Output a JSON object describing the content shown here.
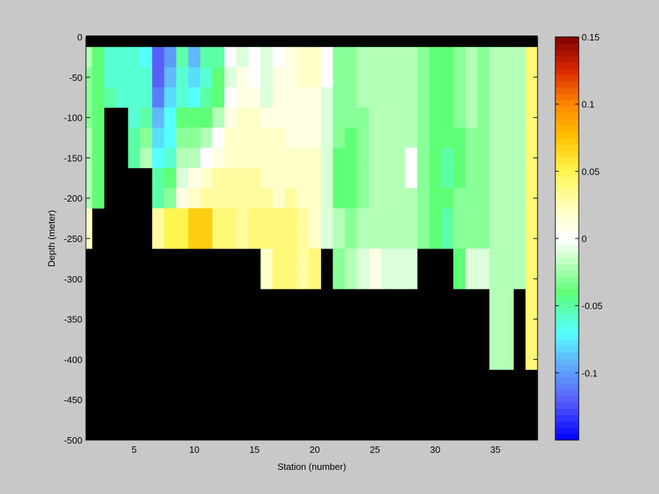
{
  "chart_data": {
    "type": "heatmap",
    "title": "",
    "xlabel": "Station (number)",
    "ylabel": "Depth (meter)",
    "xlim": [
      1,
      38.5
    ],
    "ylim": [
      -500,
      0
    ],
    "x_ticks": [
      5,
      10,
      15,
      20,
      25,
      30,
      35
    ],
    "y_ticks": [
      0,
      -50,
      -100,
      -150,
      -200,
      -250,
      -300,
      -350,
      -400,
      -450,
      -500
    ],
    "colorbar": {
      "min": -0.15,
      "max": 0.15,
      "ticks": [
        0.15,
        0.1,
        0.05,
        0,
        -0.05,
        -0.1
      ],
      "tick_labels": [
        "0.15",
        "0.1",
        "0.05",
        "0",
        "-0.05",
        "-0.1"
      ],
      "levels": 64,
      "colormap": "blue-cyan-green-white-yellow-orange-red"
    },
    "missing_color": "#000000",
    "x": [
      1,
      2,
      3,
      4,
      5,
      6,
      7,
      8,
      9,
      10,
      11,
      12,
      13,
      14,
      15,
      16,
      17,
      18,
      19,
      20,
      21,
      22,
      23,
      24,
      25,
      26,
      27,
      28,
      29,
      30,
      31,
      32,
      33,
      34,
      35,
      36,
      37,
      38
    ],
    "depths": [
      -25,
      -50,
      -75,
      -100,
      -125,
      -150,
      -175,
      -200,
      -225,
      -250,
      -275,
      -300,
      -325,
      -350,
      -375,
      -400
    ],
    "values": [
      [
        -0.02,
        -0.03,
        -0.03,
        -0.03,
        -0.02,
        -0.02,
        -0.02,
        -0.02,
        0.02,
        0.02,
        null,
        null,
        null,
        null,
        null,
        null
      ],
      [
        -0.04,
        -0.04,
        -0.04,
        -0.04,
        -0.04,
        -0.04,
        -0.04,
        -0.04,
        null,
        null,
        null,
        null,
        null,
        null,
        null,
        null
      ],
      [
        -0.06,
        -0.06,
        -0.05,
        null,
        null,
        null,
        null,
        null,
        null,
        null,
        null,
        null,
        null,
        null,
        null,
        null
      ],
      [
        -0.06,
        -0.06,
        -0.06,
        null,
        null,
        null,
        null,
        null,
        null,
        null,
        null,
        null,
        null,
        null,
        null,
        null
      ],
      [
        -0.06,
        -0.06,
        -0.06,
        -0.06,
        -0.05,
        -0.05,
        null,
        null,
        null,
        null,
        null,
        null,
        null,
        null,
        null,
        null
      ],
      [
        -0.07,
        -0.06,
        -0.06,
        -0.05,
        -0.03,
        -0.02,
        null,
        null,
        null,
        null,
        null,
        null,
        null,
        null,
        null,
        null
      ],
      [
        -0.12,
        -0.12,
        -0.11,
        -0.09,
        -0.08,
        -0.07,
        -0.05,
        -0.05,
        0.03,
        0.03,
        null,
        null,
        null,
        null,
        null,
        null
      ],
      [
        -0.1,
        -0.09,
        -0.08,
        -0.07,
        -0.07,
        -0.06,
        -0.04,
        -0.03,
        0.05,
        0.05,
        null,
        null,
        null,
        null,
        null,
        null
      ],
      [
        -0.05,
        -0.06,
        -0.06,
        -0.04,
        -0.03,
        -0.02,
        -0.01,
        0.01,
        0.05,
        0.05,
        null,
        null,
        null,
        null,
        null,
        null
      ],
      [
        -0.09,
        -0.08,
        -0.07,
        -0.04,
        -0.03,
        -0.02,
        0.01,
        0.02,
        0.07,
        0.07,
        null,
        null,
        null,
        null,
        null,
        null
      ],
      [
        -0.05,
        -0.06,
        -0.05,
        -0.04,
        -0.02,
        0.0,
        0.02,
        0.03,
        0.07,
        0.07,
        null,
        null,
        null,
        null,
        null,
        null
      ],
      [
        -0.05,
        -0.04,
        -0.04,
        -0.02,
        0.0,
        0.01,
        0.03,
        0.03,
        0.04,
        0.04,
        null,
        null,
        null,
        null,
        null,
        null
      ],
      [
        0.0,
        -0.01,
        0.0,
        0.01,
        0.02,
        0.02,
        0.03,
        0.03,
        0.04,
        0.04,
        null,
        null,
        null,
        null,
        null,
        null
      ],
      [
        -0.01,
        0.01,
        0.01,
        0.02,
        0.02,
        0.02,
        0.03,
        0.03,
        0.03,
        0.03,
        null,
        null,
        null,
        null,
        null,
        null
      ],
      [
        0.0,
        0.0,
        0.01,
        0.02,
        0.02,
        0.02,
        0.03,
        0.03,
        0.04,
        0.04,
        null,
        null,
        null,
        null,
        null,
        null
      ],
      [
        -0.01,
        -0.01,
        -0.01,
        0.01,
        0.02,
        0.02,
        0.02,
        0.03,
        0.04,
        0.04,
        0.02,
        0.02,
        null,
        null,
        null,
        null
      ],
      [
        0.0,
        0.01,
        0.01,
        0.01,
        0.02,
        0.02,
        0.02,
        0.02,
        0.04,
        0.04,
        0.04,
        0.04,
        null,
        null,
        null,
        null
      ],
      [
        0.01,
        0.01,
        0.01,
        0.01,
        0.01,
        0.02,
        0.02,
        0.03,
        0.04,
        0.04,
        0.04,
        0.04,
        null,
        null,
        null,
        null
      ],
      [
        0.02,
        0.02,
        0.01,
        0.01,
        0.01,
        0.02,
        0.02,
        0.02,
        0.03,
        0.03,
        0.03,
        0.03,
        null,
        null,
        null,
        null
      ],
      [
        0.02,
        0.02,
        0.01,
        0.01,
        0.01,
        0.02,
        0.02,
        0.02,
        0.02,
        0.02,
        0.04,
        0.04,
        null,
        null,
        null,
        null
      ],
      [
        0.0,
        0.0,
        -0.01,
        -0.01,
        -0.01,
        -0.01,
        -0.01,
        -0.01,
        -0.01,
        -0.01,
        null,
        null,
        null,
        null,
        null,
        null
      ],
      [
        -0.03,
        -0.03,
        -0.03,
        -0.03,
        -0.03,
        -0.04,
        -0.04,
        -0.04,
        -0.02,
        -0.02,
        -0.03,
        -0.03,
        null,
        null,
        null,
        null
      ],
      [
        -0.03,
        -0.03,
        -0.03,
        -0.03,
        -0.04,
        -0.04,
        -0.04,
        -0.04,
        -0.03,
        -0.03,
        -0.02,
        -0.02,
        null,
        null,
        null,
        null
      ],
      [
        -0.02,
        -0.02,
        -0.02,
        -0.03,
        -0.03,
        -0.03,
        -0.03,
        -0.03,
        -0.02,
        -0.02,
        -0.01,
        -0.01,
        null,
        null,
        null,
        null
      ],
      [
        -0.02,
        -0.02,
        -0.02,
        -0.02,
        -0.02,
        -0.02,
        -0.02,
        -0.02,
        -0.02,
        -0.02,
        0.01,
        0.01,
        null,
        null,
        null,
        null
      ],
      [
        -0.02,
        -0.02,
        -0.02,
        -0.02,
        -0.02,
        -0.02,
        -0.02,
        -0.02,
        -0.02,
        -0.02,
        -0.01,
        -0.01,
        null,
        null,
        null,
        null
      ],
      [
        -0.02,
        -0.02,
        -0.02,
        -0.02,
        -0.02,
        -0.02,
        -0.02,
        -0.02,
        -0.02,
        -0.02,
        -0.01,
        -0.01,
        null,
        null,
        null,
        null
      ],
      [
        -0.02,
        -0.02,
        -0.02,
        -0.02,
        -0.02,
        0.0,
        0.0,
        -0.02,
        -0.02,
        -0.02,
        -0.01,
        -0.01,
        null,
        null,
        null,
        null
      ],
      [
        -0.03,
        -0.03,
        -0.03,
        -0.03,
        -0.03,
        -0.03,
        -0.03,
        -0.03,
        -0.03,
        -0.03,
        null,
        null,
        null,
        null,
        null,
        null
      ],
      [
        -0.04,
        -0.04,
        -0.04,
        -0.04,
        -0.04,
        -0.04,
        -0.04,
        -0.04,
        -0.04,
        -0.04,
        null,
        null,
        null,
        null,
        null,
        null
      ],
      [
        -0.04,
        -0.04,
        -0.04,
        -0.04,
        -0.04,
        -0.05,
        -0.05,
        -0.04,
        -0.05,
        -0.05,
        null,
        null,
        null,
        null,
        null,
        null
      ],
      [
        -0.03,
        -0.03,
        -0.03,
        -0.03,
        -0.04,
        -0.04,
        -0.04,
        -0.03,
        -0.03,
        -0.03,
        -0.04,
        -0.04,
        null,
        null,
        null,
        null
      ],
      [
        -0.02,
        -0.02,
        -0.02,
        -0.02,
        -0.03,
        -0.03,
        -0.03,
        -0.03,
        -0.03,
        -0.03,
        -0.01,
        -0.01,
        null,
        null,
        null,
        null
      ],
      [
        -0.03,
        -0.03,
        -0.03,
        -0.03,
        -0.03,
        -0.03,
        -0.03,
        -0.03,
        -0.03,
        -0.03,
        -0.01,
        -0.01,
        null,
        null,
        null,
        null
      ],
      [
        -0.02,
        -0.02,
        -0.02,
        -0.02,
        -0.02,
        -0.02,
        -0.02,
        -0.02,
        -0.02,
        -0.02,
        -0.02,
        -0.02,
        -0.02,
        -0.02,
        -0.02,
        -0.02
      ],
      [
        -0.02,
        -0.02,
        -0.02,
        -0.02,
        -0.02,
        -0.02,
        -0.02,
        -0.02,
        -0.02,
        -0.02,
        -0.02,
        -0.02,
        -0.02,
        -0.02,
        -0.02,
        -0.02
      ],
      [
        -0.02,
        -0.02,
        -0.02,
        -0.02,
        -0.02,
        -0.02,
        -0.02,
        -0.02,
        -0.02,
        -0.02,
        -0.02,
        -0.02,
        null,
        null,
        null,
        null
      ],
      [
        0.04,
        0.04,
        0.04,
        0.04,
        0.04,
        0.04,
        0.04,
        0.04,
        0.04,
        0.04,
        0.04,
        0.04,
        0.04,
        0.04,
        0.04,
        0.04
      ]
    ]
  }
}
